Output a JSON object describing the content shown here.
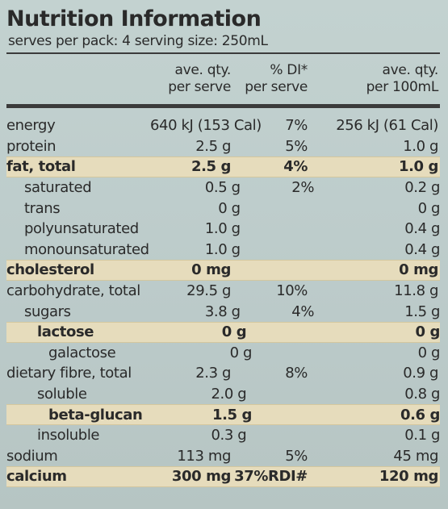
{
  "title": "Nutrition Information",
  "serves": "serves per pack: 4  serving size: 250mL",
  "columns": {
    "per_serve": [
      "ave. qty.",
      "per serve"
    ],
    "di": [
      "% DI*",
      "per serve"
    ],
    "per_100": [
      "ave. qty.",
      "per 100mL"
    ]
  },
  "rows": [
    {
      "label": "energy",
      "per_serve": "640 kJ (153 Cal)",
      "di": "7%",
      "per_100": "256 kJ (61 Cal)",
      "indent": 0,
      "bold": false
    },
    {
      "label": "protein",
      "per_serve": "2.5 g",
      "di": "5%",
      "per_100": "1.0 g",
      "indent": 0,
      "bold": false
    },
    {
      "label": "fat, total",
      "per_serve": "2.5 g",
      "di": "4%",
      "per_100": "1.0 g",
      "indent": 0,
      "bold": true
    },
    {
      "label": "saturated",
      "per_serve": "0.5 g",
      "di": "2%",
      "per_100": "0.2 g",
      "indent": 1,
      "bold": false
    },
    {
      "label": "trans",
      "per_serve": "0 g",
      "di": "",
      "per_100": "0 g",
      "indent": 1,
      "bold": false
    },
    {
      "label": "polyunsaturated",
      "per_serve": "1.0 g",
      "di": "",
      "per_100": "0.4 g",
      "indent": 1,
      "bold": false
    },
    {
      "label": "monounsaturated",
      "per_serve": "1.0 g",
      "di": "",
      "per_100": "0.4 g",
      "indent": 1,
      "bold": false
    },
    {
      "label": "cholesterol",
      "per_serve": "0 mg",
      "di": "",
      "per_100": "0 mg",
      "indent": 0,
      "bold": true
    },
    {
      "label": "carbohydrate, total",
      "per_serve": "29.5 g",
      "di": "10%",
      "per_100": "11.8 g",
      "indent": 0,
      "bold": false
    },
    {
      "label": "sugars",
      "per_serve": "3.8 g",
      "di": "4%",
      "per_100": "1.5 g",
      "indent": 1,
      "bold": false
    },
    {
      "label": "lactose",
      "per_serve": "0 g",
      "di": "",
      "per_100": "0 g",
      "indent": 2,
      "bold": true
    },
    {
      "label": "galactose",
      "per_serve": "0 g",
      "di": "",
      "per_100": "0 g",
      "indent": 3,
      "bold": false
    },
    {
      "label": "dietary fibre, total",
      "per_serve": "2.3 g",
      "di": "8%",
      "per_100": "0.9 g",
      "indent": 0,
      "bold": false
    },
    {
      "label": "soluble",
      "per_serve": "2.0 g",
      "di": "",
      "per_100": "0.8 g",
      "indent": 2,
      "bold": false
    },
    {
      "label": "beta-glucan",
      "per_serve": "1.5 g",
      "di": "",
      "per_100": "0.6 g",
      "indent": 3,
      "bold": true
    },
    {
      "label": "insoluble",
      "per_serve": "0.3 g",
      "di": "",
      "per_100": "0.1 g",
      "indent": 2,
      "bold": false
    },
    {
      "label": "sodium",
      "per_serve": "113 mg",
      "di": "5%",
      "per_100": "45 mg",
      "indent": 0,
      "bold": false
    },
    {
      "label": "calcium",
      "per_serve": "300 mg",
      "di": "37%RDI#",
      "per_100": "120 mg",
      "indent": 0,
      "bold": true
    }
  ]
}
